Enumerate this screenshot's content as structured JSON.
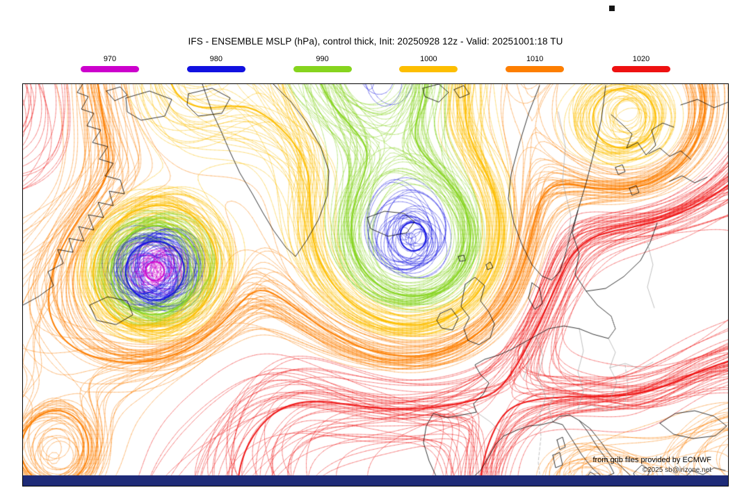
{
  "title": "IFS - ENSEMBLE MSLP (hPa), control thick, Init: 20250928 12z - Valid: 20251001:18 TU",
  "legend": {
    "items": [
      {
        "value": "970",
        "color": "#cc00cc"
      },
      {
        "value": "980",
        "color": "#1111e0"
      },
      {
        "value": "990",
        "color": "#86d41e"
      },
      {
        "value": "1000",
        "color": "#fdbe00"
      },
      {
        "value": "1010",
        "color": "#fd7e00"
      },
      {
        "value": "1020",
        "color": "#ee1111"
      }
    ]
  },
  "map": {
    "levels_hpa": [
      970,
      980,
      990,
      1000,
      1010,
      1020
    ],
    "coastline_color": "#000000",
    "border_color": "#9a9a9a",
    "background": "#ffffff"
  },
  "attribution": {
    "source": "from grib files provided by ECMWF",
    "copyright": "©2025 sb@irizone.net"
  },
  "colors": {
    "footer_bar": "#1e2b78",
    "frame": "#000000"
  }
}
